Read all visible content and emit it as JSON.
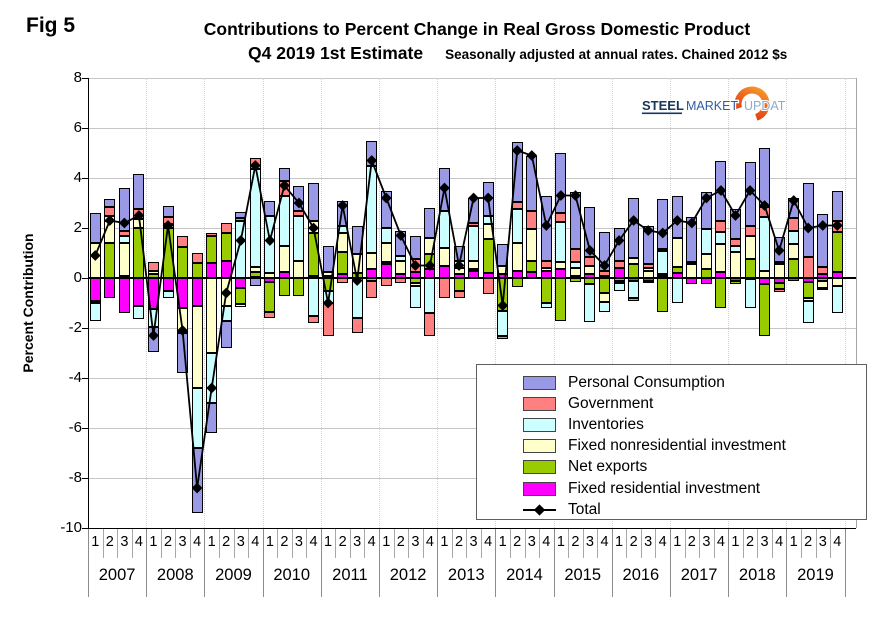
{
  "fig_label": "Fig 5",
  "header": {
    "title": "Contributions to Percent Change in Real Gross Domestic Product",
    "title2": "Q4 2019 1st Estimate",
    "subtitle": "Seasonally adjusted at annual rates. Chained 2012 $s"
  },
  "logo": {
    "word1": "STEEL",
    "word2": "MARKET",
    "word3": "UPDATE"
  },
  "chart_data": {
    "type": "bar",
    "subtype": "stacked-bars-with-total-line",
    "title": "Contributions to Percent Change in Real Gross Domestic Product",
    "xlabel": "",
    "ylabel": "Percent Contribution",
    "ylim": [
      -10,
      8
    ],
    "y_ticks": [
      8,
      6,
      4,
      2,
      0,
      -2,
      -4,
      -6,
      -8,
      -10
    ],
    "grid": "horizontal-solid, vertical-dotted-at-year-boundaries",
    "legend_position": "inside-lower-right",
    "years": [
      2007,
      2008,
      2009,
      2010,
      2011,
      2012,
      2013,
      2014,
      2015,
      2016,
      2017,
      2018,
      2019
    ],
    "quarter_labels": [
      "1",
      "2",
      "3",
      "4"
    ],
    "stack_order_from_zero": [
      "Fixed residential investment",
      "Net exports",
      "Fixed nonresidential investment",
      "Inventories",
      "Government",
      "Personal Consumption"
    ],
    "series": [
      {
        "name": "Personal Consumption",
        "color": "#9999e6",
        "values": [
          1.2,
          0.3,
          1.7,
          1.4,
          -1.0,
          0.45,
          -1.6,
          -2.6,
          -1.2,
          -1.1,
          0.25,
          -0.3,
          0.6,
          0.5,
          1.0,
          1.5,
          1.05,
          1.0,
          1.15,
          1.0,
          1.5,
          1.0,
          0.95,
          1.2,
          1.7,
          0.6,
          1.0,
          1.35,
          0.85,
          2.4,
          2.2,
          2.6,
          2.4,
          2.3,
          2.0,
          1.55,
          1.3,
          2.4,
          1.55,
          2.0,
          1.7,
          1.8,
          1.5,
          2.4,
          1.2,
          2.55,
          2.35,
          1.0,
          0.8,
          2.95,
          2.1,
          1.2
        ]
      },
      {
        "name": "Government",
        "color": "#ff8080",
        "values": [
          0.0,
          0.35,
          0.2,
          0.4,
          0.35,
          0.3,
          0.45,
          0.4,
          0.1,
          0.4,
          0.1,
          0.45,
          -0.25,
          0.6,
          0.2,
          -0.3,
          -1.3,
          -0.2,
          -0.6,
          -0.7,
          -0.3,
          -0.2,
          0.5,
          -0.9,
          -0.8,
          -0.3,
          0.1,
          -0.65,
          -0.15,
          0.3,
          0.75,
          0.3,
          0.35,
          0.5,
          0.35,
          0.2,
          0.3,
          -0.1,
          0.15,
          0.05,
          0.0,
          0.0,
          0.0,
          0.45,
          0.25,
          0.4,
          0.4,
          -0.1,
          0.5,
          0.85,
          0.3,
          0.45
        ]
      },
      {
        "name": "Inventories",
        "color": "#ccffff",
        "values": [
          -0.7,
          0.2,
          0.3,
          -0.55,
          -0.7,
          -0.3,
          -0.1,
          -2.4,
          -2.0,
          -0.6,
          2.3,
          3.9,
          2.3,
          2.0,
          1.8,
          -1.5,
          -0.5,
          0.3,
          -1.6,
          3.5,
          0.6,
          0.2,
          -0.9,
          -1.4,
          1.5,
          0.3,
          1.4,
          0.35,
          -1.0,
          1.35,
          0.0,
          -0.2,
          1.6,
          0.25,
          -1.5,
          -0.4,
          -0.3,
          -0.7,
          0.1,
          0.95,
          -1.0,
          0.1,
          1.0,
          0.5,
          0.25,
          -1.15,
          2.15,
          0.1,
          0.55,
          -0.9,
          -0.05,
          -1.1
        ]
      },
      {
        "name": "Fixed nonresidential investment",
        "color": "#ffffcc",
        "values": [
          1.4,
          0.9,
          1.3,
          0.35,
          0.15,
          0.15,
          -0.9,
          -3.3,
          -3.0,
          -1.1,
          -0.1,
          0.2,
          0.2,
          1.05,
          0.7,
          0.5,
          0.15,
          0.75,
          0.75,
          0.65,
          0.75,
          0.55,
          -0.1,
          0.65,
          0.7,
          0.25,
          0.35,
          0.6,
          0.35,
          1.1,
          1.25,
          0.1,
          0.3,
          0.3,
          0.35,
          -0.35,
          -0.1,
          0.25,
          0.3,
          0.05,
          1.15,
          0.55,
          0.6,
          1.1,
          1.05,
          0.95,
          0.3,
          0.55,
          0.6,
          -0.1,
          -0.3,
          -0.3
        ]
      },
      {
        "name": "Net exports",
        "color": "#99cc00",
        "values": [
          -0.1,
          1.4,
          0.1,
          2.0,
          0.15,
          2.0,
          1.25,
          0.6,
          1.1,
          1.1,
          -0.65,
          0.2,
          -1.2,
          -0.7,
          -0.7,
          1.7,
          -0.5,
          0.9,
          0.2,
          -0.1,
          0.1,
          0.0,
          -0.2,
          0.6,
          0.0,
          -0.5,
          0.05,
          1.35,
          -1.3,
          -0.35,
          0.45,
          -1.0,
          -1.7,
          -0.15,
          -0.25,
          -0.6,
          -0.1,
          0.55,
          -0.1,
          -1.35,
          0.25,
          0.0,
          0.35,
          -1.2,
          -0.15,
          0.75,
          -2.05,
          -0.25,
          0.75,
          -0.65,
          -0.1,
          1.6
        ]
      },
      {
        "name": "Fixed residential investment",
        "color": "#ff00ff",
        "values": [
          -0.9,
          -0.8,
          -1.4,
          -1.1,
          -1.25,
          -0.5,
          -1.2,
          -1.1,
          0.6,
          0.7,
          -0.4,
          0.05,
          -0.15,
          0.25,
          0.0,
          0.1,
          0.1,
          0.15,
          0.0,
          0.35,
          0.55,
          0.15,
          0.25,
          0.35,
          0.5,
          0.15,
          0.3,
          0.2,
          0.15,
          0.3,
          0.25,
          0.3,
          0.35,
          0.1,
          0.15,
          0.1,
          0.4,
          -0.1,
          -0.1,
          0.1,
          0.2,
          -0.25,
          -0.25,
          0.25,
          -0.1,
          -0.05,
          -0.25,
          -0.2,
          -0.1,
          -0.15,
          0.15,
          0.25
        ]
      }
    ],
    "total": {
      "name": "Total",
      "color": "#000000",
      "values": [
        0.9,
        2.3,
        2.2,
        2.5,
        -2.3,
        2.1,
        -2.1,
        -8.4,
        -4.4,
        -0.6,
        1.5,
        4.5,
        1.5,
        3.7,
        3.0,
        2.0,
        -1.0,
        2.9,
        -0.1,
        4.7,
        3.2,
        1.7,
        0.5,
        0.5,
        3.6,
        0.5,
        3.2,
        3.2,
        -1.1,
        5.1,
        4.9,
        2.1,
        3.3,
        3.3,
        1.1,
        0.5,
        1.5,
        2.3,
        1.9,
        1.8,
        2.3,
        2.2,
        3.2,
        3.5,
        2.5,
        3.5,
        2.9,
        1.1,
        3.1,
        2.0,
        2.1,
        2.1
      ]
    }
  }
}
